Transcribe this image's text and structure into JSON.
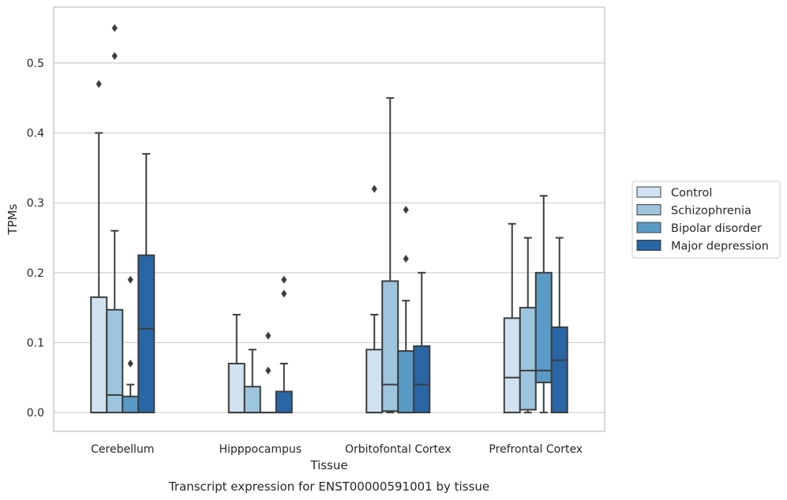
{
  "caption": "Transcript expression for ENST00000591001 by tissue",
  "chart_data": {
    "type": "box",
    "xlabel": "Tissue",
    "ylabel": "TPMs",
    "ylim": [
      -0.027,
      0.58
    ],
    "yticks": [
      0.0,
      0.1,
      0.2,
      0.3,
      0.4,
      0.5
    ],
    "ytick_labels": [
      "0.0",
      "0.1",
      "0.2",
      "0.3",
      "0.4",
      "0.5"
    ],
    "grid": "horizontal",
    "legend_position": "right",
    "categories": [
      "Cerebellum",
      "Hipppocampus",
      "Orbitofontal Cortex",
      "Prefrontal Cortex"
    ],
    "series": [
      {
        "name": "Control",
        "color": "#d0e1f0",
        "boxes": [
          {
            "whislo": 0.0,
            "q1": 0.0,
            "med": 0.0,
            "q3": 0.165,
            "whishi": 0.4,
            "fliers": [
              0.47
            ]
          },
          {
            "whislo": 0.0,
            "q1": 0.0,
            "med": 0.0,
            "q3": 0.07,
            "whishi": 0.14,
            "fliers": []
          },
          {
            "whislo": 0.0,
            "q1": 0.0,
            "med": 0.0,
            "q3": 0.09,
            "whishi": 0.14,
            "fliers": [
              0.32
            ]
          },
          {
            "whislo": 0.0,
            "q1": 0.0,
            "med": 0.05,
            "q3": 0.135,
            "whishi": 0.27,
            "fliers": []
          }
        ]
      },
      {
        "name": "Schizophrenia",
        "color": "#9dc5dd",
        "boxes": [
          {
            "whislo": 0.0,
            "q1": 0.0,
            "med": 0.025,
            "q3": 0.147,
            "whishi": 0.26,
            "fliers": [
              0.51,
              0.55
            ]
          },
          {
            "whislo": 0.0,
            "q1": 0.0,
            "med": 0.0,
            "q3": 0.037,
            "whishi": 0.09,
            "fliers": []
          },
          {
            "whislo": 0.0,
            "q1": 0.002,
            "med": 0.04,
            "q3": 0.188,
            "whishi": 0.45,
            "fliers": []
          },
          {
            "whislo": 0.0,
            "q1": 0.004,
            "med": 0.06,
            "q3": 0.15,
            "whishi": 0.25,
            "fliers": []
          }
        ]
      },
      {
        "name": "Bipolar disorder",
        "color": "#5a9ac7",
        "boxes": [
          {
            "whislo": 0.0,
            "q1": 0.0,
            "med": 0.0,
            "q3": 0.023,
            "whishi": 0.04,
            "fliers": [
              0.07,
              0.19
            ]
          },
          {
            "whislo": 0.0,
            "q1": 0.0,
            "med": 0.0,
            "q3": 0.0,
            "whishi": 0.0,
            "fliers": [
              0.06,
              0.11
            ]
          },
          {
            "whislo": 0.0,
            "q1": 0.0,
            "med": 0.0,
            "q3": 0.088,
            "whishi": 0.16,
            "fliers": [
              0.22,
              0.29
            ]
          },
          {
            "whislo": 0.0,
            "q1": 0.043,
            "med": 0.06,
            "q3": 0.2,
            "whishi": 0.31,
            "fliers": []
          }
        ]
      },
      {
        "name": "Major depression",
        "color": "#2866a6",
        "boxes": [
          {
            "whislo": 0.0,
            "q1": 0.0,
            "med": 0.12,
            "q3": 0.225,
            "whishi": 0.37,
            "fliers": []
          },
          {
            "whislo": 0.0,
            "q1": 0.0,
            "med": 0.0,
            "q3": 0.03,
            "whishi": 0.07,
            "fliers": [
              0.17,
              0.19
            ]
          },
          {
            "whislo": 0.0,
            "q1": 0.0,
            "med": 0.04,
            "q3": 0.095,
            "whishi": 0.2,
            "fliers": []
          },
          {
            "whislo": 0.0,
            "q1": 0.0,
            "med": 0.075,
            "q3": 0.122,
            "whishi": 0.25,
            "fliers": []
          }
        ]
      }
    ]
  }
}
